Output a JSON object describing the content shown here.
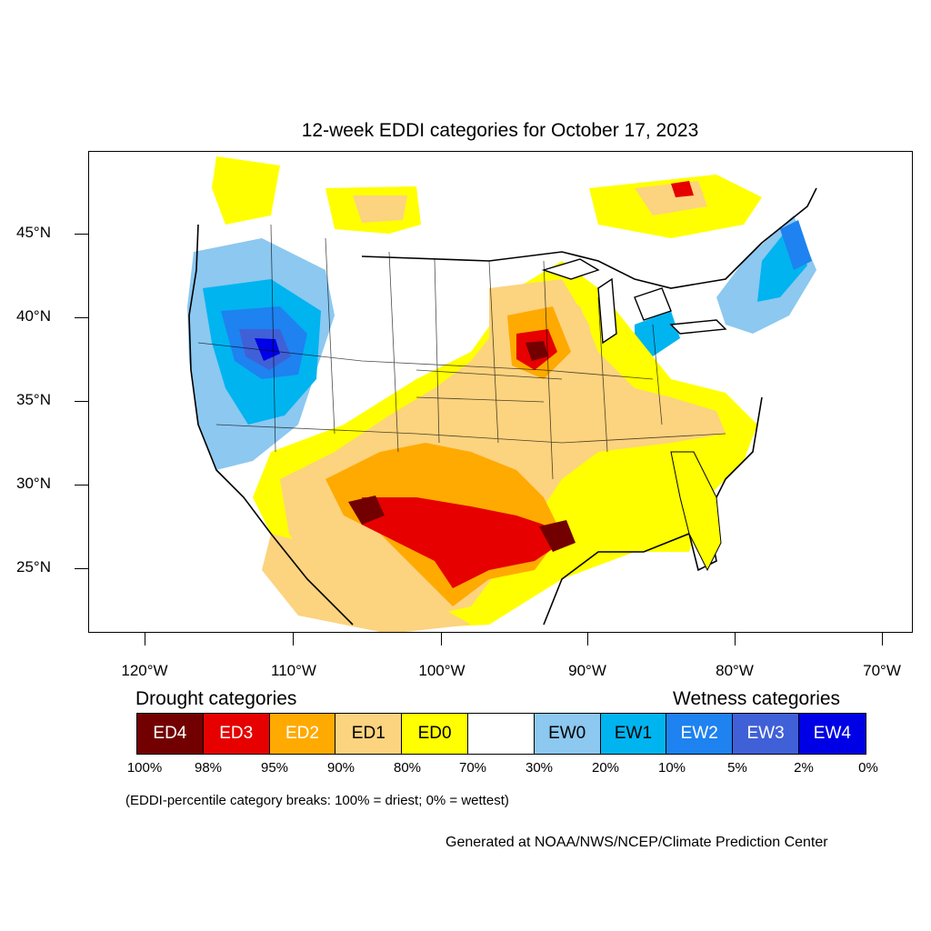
{
  "title": "12-week EDDI categories for October 17, 2023",
  "lat_labels": [
    "45°N",
    "40°N",
    "35°N",
    "30°N",
    "25°N"
  ],
  "lon_labels": [
    "120°W",
    "110°W",
    "100°W",
    "90°W",
    "80°W",
    "70°W"
  ],
  "drought_heading": "Drought categories",
  "wetness_heading": "Wetness categories",
  "legend": [
    {
      "label": "ED4",
      "color": "#730000",
      "text_color": "#ffffff"
    },
    {
      "label": "ED3",
      "color": "#e60000",
      "text_color": "#ffffff"
    },
    {
      "label": "ED2",
      "color": "#ffaa00",
      "text_color": "#ffffff"
    },
    {
      "label": "ED1",
      "color": "#fcd37f",
      "text_color": "#000000"
    },
    {
      "label": "ED0",
      "color": "#ffff00",
      "text_color": "#000000"
    },
    {
      "label": "",
      "color": "#ffffff",
      "text_color": "#000000"
    },
    {
      "label": "EW0",
      "color": "#8cc8f0",
      "text_color": "#000000"
    },
    {
      "label": "EW1",
      "color": "#00b4f0",
      "text_color": "#000000"
    },
    {
      "label": "EW2",
      "color": "#1e82f0",
      "text_color": "#ffffff"
    },
    {
      "label": "EW3",
      "color": "#4060d8",
      "text_color": "#ffffff"
    },
    {
      "label": "EW4",
      "color": "#0000e6",
      "text_color": "#ffffff"
    }
  ],
  "percentiles": [
    "100%",
    "98%",
    "95%",
    "90%",
    "80%",
    "70%",
    "30%",
    "20%",
    "10%",
    "5%",
    "2%",
    "0%"
  ],
  "note": "(EDDI-percentile category breaks: 100% = driest; 0% = wettest)",
  "credit": "Generated at NOAA/NWS/NCEP/Climate Prediction Center"
}
